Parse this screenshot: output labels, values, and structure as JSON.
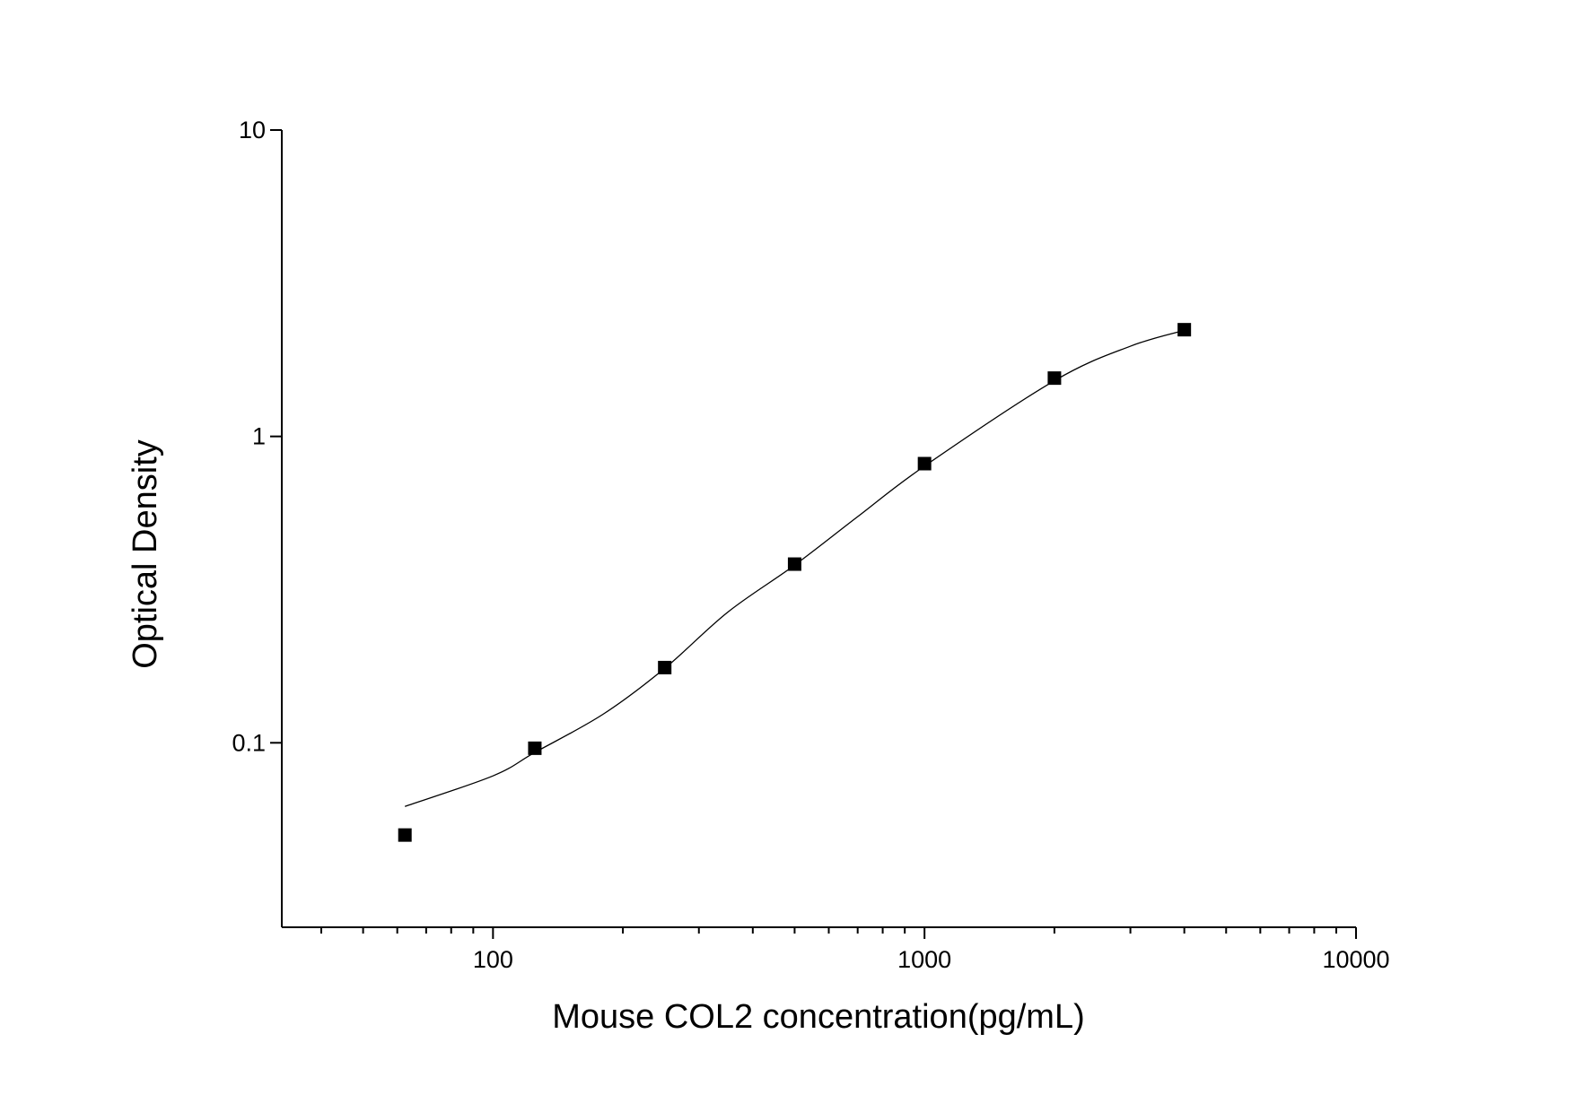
{
  "chart_data": {
    "type": "scatter",
    "x_label": "Mouse COL2 concentration(pg/mL)",
    "y_label": "Optical Density",
    "x_log": true,
    "y_log": true,
    "xlim": [
      32.4,
      10000
    ],
    "ylim": [
      0.025,
      10
    ],
    "xticks": [
      100,
      1000,
      10000
    ],
    "x_minor_ticks": [
      40,
      50,
      60,
      70,
      80,
      90,
      200,
      300,
      400,
      500,
      600,
      700,
      800,
      900,
      2000,
      3000,
      4000,
      5000,
      6000,
      7000,
      8000,
      9000
    ],
    "yticks": [
      0.1,
      1,
      10
    ],
    "series": [
      {
        "type": "scatter",
        "color": "#000000",
        "x": [
          62.5,
          125,
          250,
          500,
          1000,
          2000,
          4000
        ],
        "values": [
          0.05,
          0.096,
          0.176,
          0.383,
          0.815,
          1.55,
          2.23
        ]
      },
      {
        "type": "line",
        "color": "#000000",
        "x": [
          62.5,
          100,
          125,
          180,
          250,
          350,
          500,
          700,
          1000,
          2000,
          3000,
          4000
        ],
        "values": [
          0.062,
          0.078,
          0.093,
          0.124,
          0.175,
          0.267,
          0.38,
          0.547,
          0.8,
          1.52,
          1.97,
          2.22
        ]
      }
    ]
  }
}
